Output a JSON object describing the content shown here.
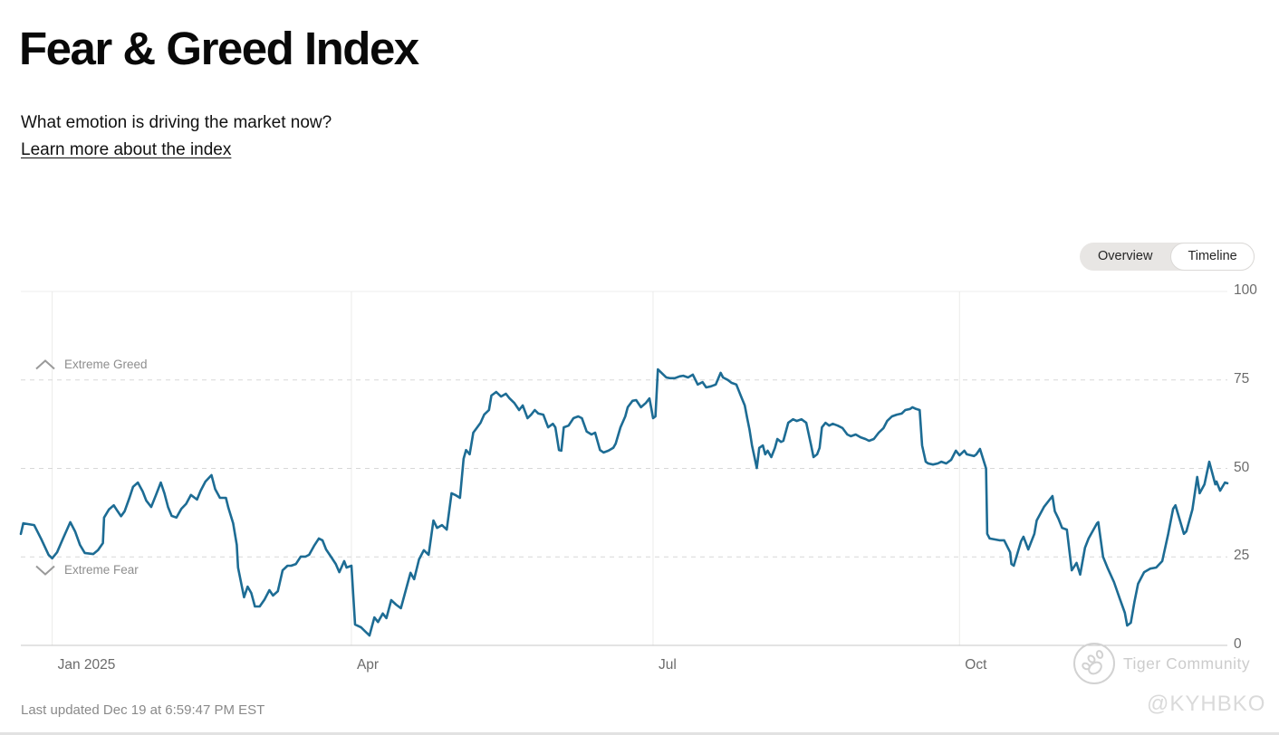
{
  "header": {
    "title": "Fear & Greed Index",
    "subtitle": "What emotion is driving the market now?",
    "link": "Learn more about the index"
  },
  "toggle": {
    "options": [
      "Overview",
      "Timeline"
    ],
    "selected": "Timeline"
  },
  "chart_data": {
    "type": "line",
    "title": "Fear & Greed Index timeline",
    "x_axis": {
      "range_note": "one year, Dec 2024 through Dec 19 2025, position as fraction 0-1",
      "ticks": [
        {
          "label": "Jan 2025",
          "t": 0.026
        },
        {
          "label": "Apr",
          "t": 0.274
        },
        {
          "label": "Jul",
          "t": 0.524
        },
        {
          "label": "Oct",
          "t": 0.778
        }
      ]
    },
    "y_axis": {
      "ticks": [
        0,
        25,
        50,
        75,
        100
      ],
      "ylim": [
        0,
        100
      ]
    },
    "thresholds": [
      {
        "label": "Extreme Greed",
        "value": 75,
        "icon": "chevron-up"
      },
      {
        "label": "Extreme Fear",
        "value": 25,
        "icon": "chevron-down"
      }
    ],
    "line_color": "#1d6c94",
    "series": [
      {
        "name": "Fear & Greed Index",
        "points": [
          [
            0.0,
            31.5
          ],
          [
            0.002,
            34.5
          ],
          [
            0.011,
            34
          ],
          [
            0.017,
            30
          ],
          [
            0.023,
            25.6
          ],
          [
            0.026,
            24.6
          ],
          [
            0.03,
            26.3
          ],
          [
            0.035,
            30.2
          ],
          [
            0.041,
            34.8
          ],
          [
            0.045,
            32.2
          ],
          [
            0.049,
            28.4
          ],
          [
            0.053,
            26.1
          ],
          [
            0.06,
            25.8
          ],
          [
            0.064,
            26.9
          ],
          [
            0.068,
            28.9
          ],
          [
            0.069,
            36.1
          ],
          [
            0.073,
            38.4
          ],
          [
            0.077,
            39.6
          ],
          [
            0.08,
            38
          ],
          [
            0.083,
            36.5
          ],
          [
            0.086,
            37.9
          ],
          [
            0.09,
            41.7
          ],
          [
            0.093,
            44.8
          ],
          [
            0.097,
            46
          ],
          [
            0.101,
            43.5
          ],
          [
            0.104,
            40.9
          ],
          [
            0.108,
            39.1
          ],
          [
            0.112,
            42.5
          ],
          [
            0.116,
            46
          ],
          [
            0.119,
            43
          ],
          [
            0.122,
            39.1
          ],
          [
            0.125,
            36.6
          ],
          [
            0.129,
            36.1
          ],
          [
            0.133,
            38.6
          ],
          [
            0.137,
            40
          ],
          [
            0.141,
            42.5
          ],
          [
            0.146,
            41.2
          ],
          [
            0.149,
            43.7
          ],
          [
            0.153,
            46.3
          ],
          [
            0.158,
            48.1
          ],
          [
            0.161,
            44.2
          ],
          [
            0.165,
            41.7
          ],
          [
            0.17,
            41.7
          ],
          [
            0.172,
            38.9
          ],
          [
            0.176,
            34.5
          ],
          [
            0.179,
            28.4
          ],
          [
            0.18,
            22
          ],
          [
            0.183,
            16.9
          ],
          [
            0.185,
            13.6
          ],
          [
            0.188,
            16.6
          ],
          [
            0.191,
            14.8
          ],
          [
            0.194,
            11
          ],
          [
            0.198,
            11
          ],
          [
            0.202,
            13
          ],
          [
            0.206,
            15.6
          ],
          [
            0.209,
            14.1
          ],
          [
            0.213,
            15.3
          ],
          [
            0.217,
            21.2
          ],
          [
            0.221,
            22.5
          ],
          [
            0.224,
            22.5
          ],
          [
            0.228,
            23
          ],
          [
            0.232,
            25.1
          ],
          [
            0.236,
            25.1
          ],
          [
            0.239,
            25.6
          ],
          [
            0.243,
            28.1
          ],
          [
            0.247,
            30.2
          ],
          [
            0.25,
            29.7
          ],
          [
            0.253,
            27.1
          ],
          [
            0.257,
            25.1
          ],
          [
            0.261,
            23
          ],
          [
            0.264,
            20.7
          ],
          [
            0.268,
            23.8
          ],
          [
            0.27,
            22
          ],
          [
            0.274,
            22.5
          ],
          [
            0.277,
            5.9
          ],
          [
            0.282,
            5.1
          ],
          [
            0.285,
            4.1
          ],
          [
            0.289,
            2.8
          ],
          [
            0.293,
            7.9
          ],
          [
            0.296,
            6.6
          ],
          [
            0.3,
            9
          ],
          [
            0.303,
            7.7
          ],
          [
            0.307,
            12.8
          ],
          [
            0.311,
            11.5
          ],
          [
            0.315,
            10.5
          ],
          [
            0.318,
            14.3
          ],
          [
            0.323,
            20.5
          ],
          [
            0.326,
            18.7
          ],
          [
            0.33,
            24.3
          ],
          [
            0.334,
            26.9
          ],
          [
            0.338,
            25.6
          ],
          [
            0.342,
            35.3
          ],
          [
            0.345,
            33.2
          ],
          [
            0.349,
            34
          ],
          [
            0.353,
            32.7
          ],
          [
            0.357,
            43
          ],
          [
            0.36,
            42.5
          ],
          [
            0.364,
            41.7
          ],
          [
            0.367,
            52.7
          ],
          [
            0.369,
            55.2
          ],
          [
            0.372,
            54
          ],
          [
            0.375,
            60.1
          ],
          [
            0.381,
            62.9
          ],
          [
            0.384,
            65.2
          ],
          [
            0.388,
            66.5
          ],
          [
            0.39,
            70.6
          ],
          [
            0.394,
            71.6
          ],
          [
            0.398,
            70.3
          ],
          [
            0.402,
            71.1
          ],
          [
            0.405,
            69.8
          ],
          [
            0.409,
            68.5
          ],
          [
            0.413,
            66.5
          ],
          [
            0.416,
            67.8
          ],
          [
            0.42,
            64.2
          ],
          [
            0.423,
            65.2
          ],
          [
            0.426,
            66.5
          ],
          [
            0.429,
            65.5
          ],
          [
            0.433,
            65.2
          ],
          [
            0.437,
            61.6
          ],
          [
            0.441,
            62.6
          ],
          [
            0.443,
            61.6
          ],
          [
            0.446,
            55.2
          ],
          [
            0.448,
            55
          ],
          [
            0.45,
            61.6
          ],
          [
            0.454,
            62.1
          ],
          [
            0.458,
            64.2
          ],
          [
            0.462,
            64.7
          ],
          [
            0.465,
            64.2
          ],
          [
            0.469,
            60.4
          ],
          [
            0.473,
            59.6
          ],
          [
            0.476,
            60.1
          ],
          [
            0.48,
            55.2
          ],
          [
            0.483,
            54.5
          ],
          [
            0.487,
            55
          ],
          [
            0.491,
            55.8
          ],
          [
            0.493,
            57
          ],
          [
            0.497,
            61.6
          ],
          [
            0.501,
            64.7
          ],
          [
            0.503,
            67.3
          ],
          [
            0.507,
            69.1
          ],
          [
            0.51,
            69.3
          ],
          [
            0.514,
            67.3
          ],
          [
            0.518,
            68.5
          ],
          [
            0.521,
            69.8
          ],
          [
            0.524,
            64.2
          ],
          [
            0.526,
            64.7
          ],
          [
            0.528,
            78
          ],
          [
            0.531,
            77
          ],
          [
            0.535,
            75.7
          ],
          [
            0.538,
            75.5
          ],
          [
            0.542,
            75.5
          ],
          [
            0.546,
            76
          ],
          [
            0.549,
            76.2
          ],
          [
            0.553,
            75.7
          ],
          [
            0.557,
            76.5
          ],
          [
            0.561,
            73.7
          ],
          [
            0.565,
            74.4
          ],
          [
            0.568,
            72.9
          ],
          [
            0.572,
            73.2
          ],
          [
            0.576,
            73.7
          ],
          [
            0.58,
            77
          ],
          [
            0.582,
            75.7
          ],
          [
            0.586,
            75
          ],
          [
            0.589,
            74.2
          ],
          [
            0.593,
            73.7
          ],
          [
            0.597,
            70.3
          ],
          [
            0.6,
            67.8
          ],
          [
            0.602,
            64.2
          ],
          [
            0.604,
            60.9
          ],
          [
            0.606,
            56.5
          ],
          [
            0.61,
            50.1
          ],
          [
            0.612,
            55.8
          ],
          [
            0.615,
            56.5
          ],
          [
            0.617,
            54
          ],
          [
            0.619,
            55
          ],
          [
            0.622,
            53.2
          ],
          [
            0.625,
            55.8
          ],
          [
            0.627,
            58.3
          ],
          [
            0.63,
            57.5
          ],
          [
            0.632,
            57.8
          ],
          [
            0.636,
            62.9
          ],
          [
            0.64,
            63.9
          ],
          [
            0.643,
            63.4
          ],
          [
            0.647,
            63.9
          ],
          [
            0.651,
            62.9
          ],
          [
            0.655,
            56.5
          ],
          [
            0.657,
            53.2
          ],
          [
            0.66,
            54
          ],
          [
            0.662,
            55.8
          ],
          [
            0.664,
            61.6
          ],
          [
            0.667,
            62.9
          ],
          [
            0.67,
            62.1
          ],
          [
            0.673,
            62.6
          ],
          [
            0.677,
            62.1
          ],
          [
            0.681,
            61.4
          ],
          [
            0.685,
            59.6
          ],
          [
            0.688,
            59.1
          ],
          [
            0.692,
            59.6
          ],
          [
            0.696,
            58.8
          ],
          [
            0.7,
            58.3
          ],
          [
            0.703,
            57.8
          ],
          [
            0.707,
            58.3
          ],
          [
            0.711,
            60.1
          ],
          [
            0.715,
            61.4
          ],
          [
            0.718,
            63.4
          ],
          [
            0.722,
            64.7
          ],
          [
            0.726,
            65.2
          ],
          [
            0.73,
            65.5
          ],
          [
            0.733,
            66.5
          ],
          [
            0.737,
            66.8
          ],
          [
            0.739,
            67.3
          ],
          [
            0.742,
            66.8
          ],
          [
            0.745,
            66.5
          ],
          [
            0.747,
            56.5
          ],
          [
            0.75,
            51.9
          ],
          [
            0.752,
            51.4
          ],
          [
            0.756,
            51.1
          ],
          [
            0.76,
            51.4
          ],
          [
            0.763,
            51.9
          ],
          [
            0.767,
            51.4
          ],
          [
            0.771,
            52.4
          ],
          [
            0.775,
            55
          ],
          [
            0.778,
            53.7
          ],
          [
            0.782,
            55
          ],
          [
            0.784,
            54
          ],
          [
            0.79,
            53.5
          ],
          [
            0.792,
            54
          ],
          [
            0.795,
            55.5
          ],
          [
            0.8,
            50
          ],
          [
            0.801,
            31.5
          ],
          [
            0.803,
            30.2
          ],
          [
            0.811,
            29.7
          ],
          [
            0.815,
            29.7
          ],
          [
            0.82,
            26.3
          ],
          [
            0.821,
            23
          ],
          [
            0.823,
            22.5
          ],
          [
            0.829,
            29.4
          ],
          [
            0.831,
            30.7
          ],
          [
            0.835,
            27.1
          ],
          [
            0.84,
            31.5
          ],
          [
            0.842,
            35.3
          ],
          [
            0.848,
            39.1
          ],
          [
            0.855,
            42.2
          ],
          [
            0.857,
            37.9
          ],
          [
            0.86,
            35.8
          ],
          [
            0.863,
            33.2
          ],
          [
            0.867,
            32.7
          ],
          [
            0.871,
            21.2
          ],
          [
            0.875,
            23.3
          ],
          [
            0.878,
            20
          ],
          [
            0.882,
            27.6
          ],
          [
            0.885,
            30.2
          ],
          [
            0.892,
            34.5
          ],
          [
            0.893,
            34.8
          ],
          [
            0.897,
            25
          ],
          [
            0.901,
            21.7
          ],
          [
            0.906,
            17.9
          ],
          [
            0.911,
            13
          ],
          [
            0.915,
            9.2
          ],
          [
            0.917,
            5.6
          ],
          [
            0.92,
            6.4
          ],
          [
            0.923,
            12.3
          ],
          [
            0.926,
            17.4
          ],
          [
            0.931,
            20.7
          ],
          [
            0.936,
            21.7
          ],
          [
            0.941,
            22
          ],
          [
            0.946,
            23.8
          ],
          [
            0.951,
            31.5
          ],
          [
            0.955,
            38.6
          ],
          [
            0.957,
            39.6
          ],
          [
            0.964,
            31.5
          ],
          [
            0.966,
            32.2
          ],
          [
            0.971,
            38.4
          ],
          [
            0.975,
            47.6
          ],
          [
            0.977,
            43
          ],
          [
            0.981,
            45.5
          ],
          [
            0.985,
            51.9
          ],
          [
            0.989,
            46.8
          ],
          [
            0.99,
            45.5
          ],
          [
            0.991,
            46.3
          ],
          [
            0.994,
            43.7
          ],
          [
            0.998,
            46
          ],
          [
            1.0,
            45.8
          ]
        ]
      }
    ]
  },
  "footer": {
    "last_updated": "Last updated Dec 19 at 6:59:47 PM EST"
  },
  "watermark": {
    "community": "Tiger Community",
    "handle": "@KYHBKO"
  }
}
